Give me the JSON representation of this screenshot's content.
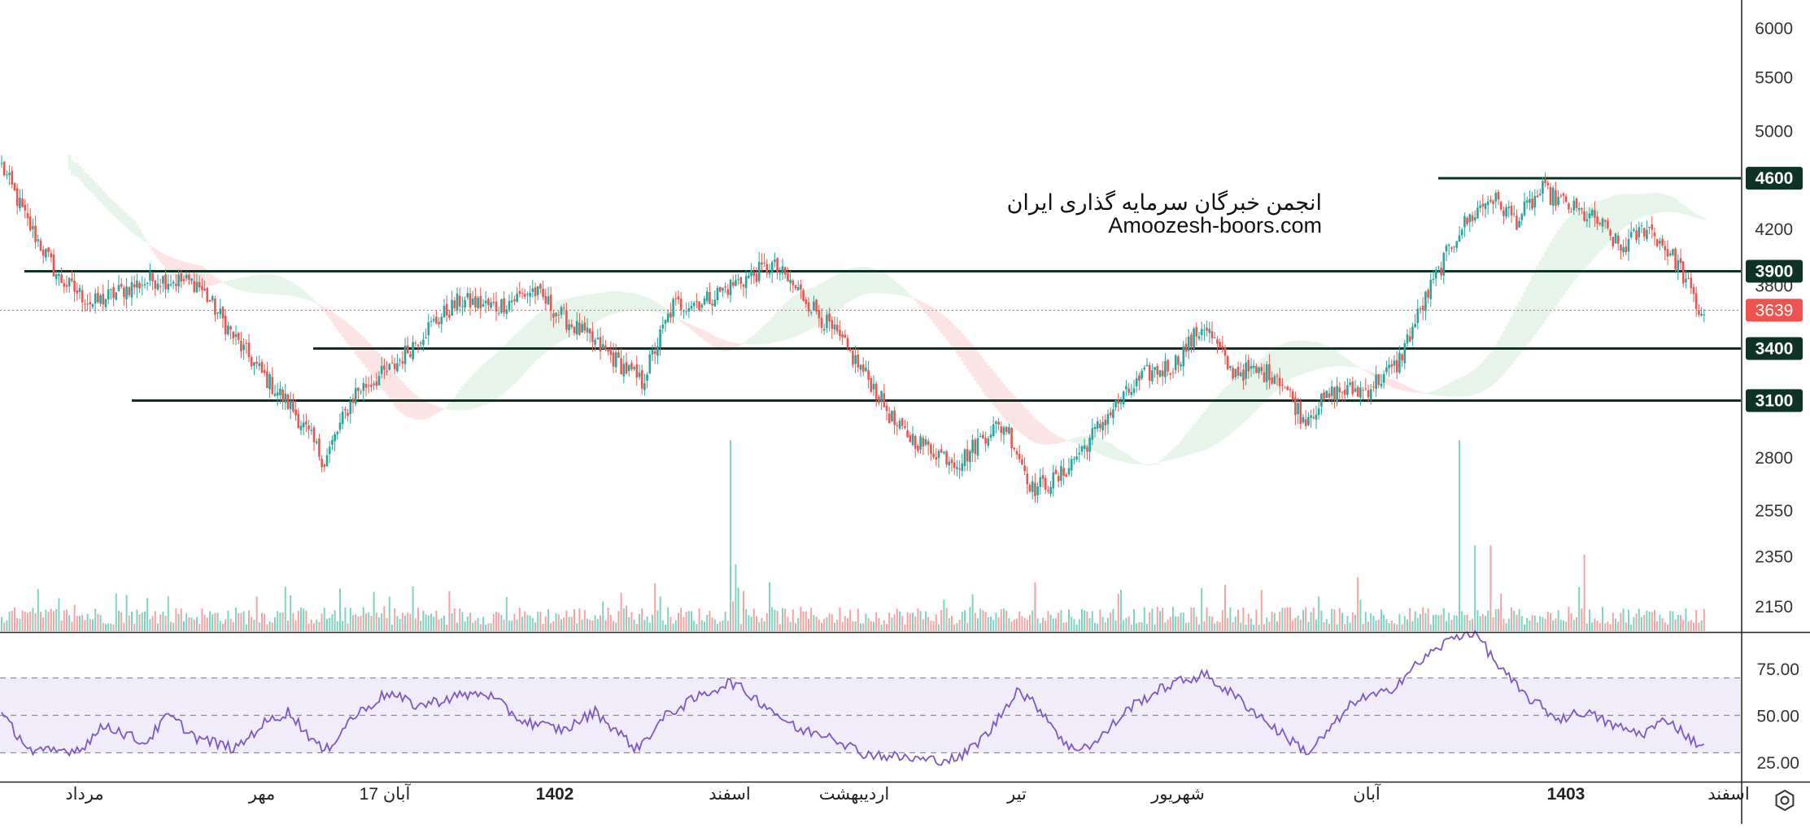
{
  "watermark": {
    "line1": "انجمن خبرگان سرمایه گذاری ایران",
    "line2": "Amoozesh-boors.com"
  },
  "colors": {
    "up": "#26a69a",
    "down": "#ef5350",
    "up_volume": "#7fd3c0",
    "down_volume": "#f4a3a3",
    "cloud_bull": "#e6f4ea",
    "cloud_bear": "#fde4e4",
    "level_line": "#0c3323",
    "level_label_bg": "#0c3323",
    "last_price_bg": "#ef5350",
    "rsi_line": "#7e57c2",
    "rsi_band": "#f1ecfa",
    "axis_text": "#333333"
  },
  "chart_data": [
    {
      "type": "candlestick",
      "panel": "price",
      "y_ticks": [
        2150,
        2350,
        2550,
        2800,
        3100,
        3400,
        3800,
        4200,
        4600,
        5000,
        5500,
        6000
      ],
      "y_tick_labels": [
        "2150",
        "2350",
        "2550",
        "2800",
        "3100",
        "3400",
        "3800",
        "4200",
        "4600",
        "5000",
        "5500",
        "6000"
      ],
      "ylim": [
        2050,
        6200
      ],
      "y_scale": "log",
      "x_labels": [
        "مرداد",
        "مهر",
        "17 آبان",
        "1402",
        "اسفند",
        "اردیبهشت",
        "تیر",
        "شهریور",
        "آبان",
        "1403",
        "اسفند"
      ],
      "x_labels_bold": [
        false,
        false,
        false,
        true,
        false,
        false,
        false,
        false,
        false,
        true,
        false
      ],
      "horizontal_levels": [
        {
          "label": "4600",
          "value": 4600
        },
        {
          "label": "3900",
          "value": 3900
        },
        {
          "label": "3400",
          "value": 3400
        },
        {
          "label": "3100",
          "value": 3100
        }
      ],
      "last_price": {
        "label": "3639",
        "value": 3639
      },
      "closes_anchors": [
        [
          0,
          4700
        ],
        [
          10,
          4250
        ],
        [
          22,
          3850
        ],
        [
          35,
          3680
        ],
        [
          50,
          3800
        ],
        [
          60,
          3850
        ],
        [
          75,
          3820
        ],
        [
          90,
          3450
        ],
        [
          100,
          3250
        ],
        [
          112,
          3050
        ],
        [
          124,
          2780
        ],
        [
          136,
          3150
        ],
        [
          150,
          3280
        ],
        [
          162,
          3500
        ],
        [
          176,
          3700
        ],
        [
          190,
          3660
        ],
        [
          204,
          3770
        ],
        [
          218,
          3560
        ],
        [
          232,
          3380
        ],
        [
          246,
          3200
        ],
        [
          258,
          3670
        ],
        [
          270,
          3700
        ],
        [
          282,
          3820
        ],
        [
          296,
          3940
        ],
        [
          308,
          3730
        ],
        [
          322,
          3450
        ],
        [
          334,
          3200
        ],
        [
          344,
          2950
        ],
        [
          356,
          2850
        ],
        [
          368,
          2780
        ],
        [
          380,
          2950
        ],
        [
          386,
          2960
        ],
        [
          396,
          2650
        ],
        [
          406,
          2700
        ],
        [
          416,
          2860
        ],
        [
          426,
          3040
        ],
        [
          440,
          3250
        ],
        [
          450,
          3300
        ],
        [
          462,
          3550
        ],
        [
          472,
          3270
        ],
        [
          482,
          3260
        ],
        [
          490,
          3250
        ],
        [
          500,
          3000
        ],
        [
          512,
          3150
        ],
        [
          524,
          3160
        ],
        [
          536,
          3300
        ],
        [
          548,
          3750
        ],
        [
          560,
          4200
        ],
        [
          572,
          4450
        ],
        [
          582,
          4270
        ],
        [
          592,
          4500
        ],
        [
          604,
          4350
        ],
        [
          614,
          4250
        ],
        [
          622,
          4050
        ],
        [
          632,
          4230
        ],
        [
          644,
          3950
        ],
        [
          652,
          3630
        ]
      ],
      "volume_spikes": [
        [
          280,
          1.0
        ],
        [
          282,
          0.35
        ],
        [
          560,
          1.0
        ],
        [
          566,
          0.45
        ],
        [
          572,
          0.45
        ],
        [
          608,
          0.4
        ]
      ]
    },
    {
      "type": "line",
      "panel": "rsi",
      "y_ticks": [
        25,
        50,
        75
      ],
      "y_tick_labels": [
        "25.00",
        "50.00",
        "75.00"
      ],
      "ylim": [
        20,
        96
      ],
      "band": [
        30,
        70
      ],
      "midline": 50,
      "anchors": [
        [
          0,
          50
        ],
        [
          12,
          30
        ],
        [
          30,
          32
        ],
        [
          40,
          45
        ],
        [
          55,
          35
        ],
        [
          64,
          50
        ],
        [
          75,
          38
        ],
        [
          90,
          32
        ],
        [
          100,
          45
        ],
        [
          110,
          52
        ],
        [
          124,
          30
        ],
        [
          134,
          48
        ],
        [
          148,
          62
        ],
        [
          160,
          55
        ],
        [
          174,
          60
        ],
        [
          186,
          62
        ],
        [
          200,
          47
        ],
        [
          216,
          42
        ],
        [
          228,
          52
        ],
        [
          244,
          32
        ],
        [
          256,
          51
        ],
        [
          268,
          60
        ],
        [
          280,
          68
        ],
        [
          294,
          55
        ],
        [
          306,
          42
        ],
        [
          318,
          40
        ],
        [
          330,
          30
        ],
        [
          342,
          28
        ],
        [
          356,
          26
        ],
        [
          368,
          27
        ],
        [
          380,
          42
        ],
        [
          390,
          64
        ],
        [
          400,
          52
        ],
        [
          410,
          32
        ],
        [
          420,
          35
        ],
        [
          434,
          55
        ],
        [
          448,
          66
        ],
        [
          462,
          72
        ],
        [
          476,
          58
        ],
        [
          490,
          42
        ],
        [
          502,
          30
        ],
        [
          512,
          45
        ],
        [
          520,
          58
        ],
        [
          532,
          62
        ],
        [
          546,
          80
        ],
        [
          558,
          92
        ],
        [
          566,
          95
        ],
        [
          574,
          78
        ],
        [
          584,
          62
        ],
        [
          598,
          48
        ],
        [
          608,
          52
        ],
        [
          620,
          44
        ],
        [
          630,
          40
        ],
        [
          640,
          48
        ],
        [
          650,
          36
        ],
        [
          654,
          34
        ]
      ]
    }
  ]
}
